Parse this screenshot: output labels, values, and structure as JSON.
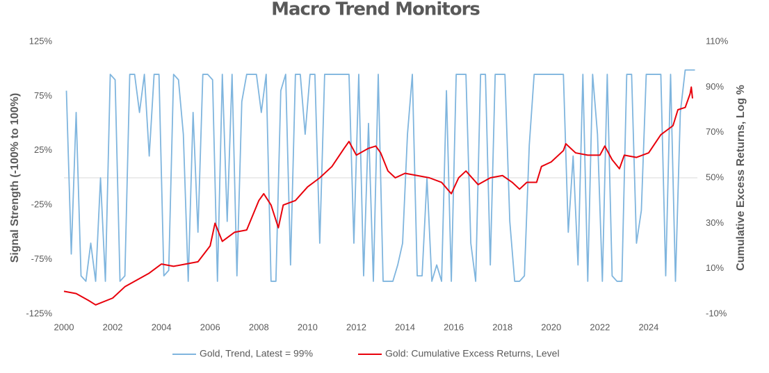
{
  "chart_data": {
    "type": "line",
    "title": "Macro Trend Monitors",
    "y_label": "Signal Strength (-100% to 100%)",
    "y2_label": "Cumulative Excess Returns, Log %",
    "xlim": [
      2000,
      2026
    ],
    "xticks": [
      2000,
      2002,
      2004,
      2006,
      2008,
      2010,
      2012,
      2014,
      2016,
      2018,
      2020,
      2022,
      2024
    ],
    "ylim": [
      -125,
      125
    ],
    "yticks": [
      {
        "value": -125,
        "label": "-125%"
      },
      {
        "value": -75,
        "label": "-75%"
      },
      {
        "value": -25,
        "label": "-25%"
      },
      {
        "value": 25,
        "label": "25%"
      },
      {
        "value": 75,
        "label": "75%"
      },
      {
        "value": 125,
        "label": "125%"
      }
    ],
    "y2lim": [
      -10,
      110
    ],
    "y2ticks": [
      {
        "value": -10,
        "label": "-10%"
      },
      {
        "value": 10,
        "label": "10%"
      },
      {
        "value": 30,
        "label": "30%"
      },
      {
        "value": 50,
        "label": "50%"
      },
      {
        "value": 70,
        "label": "70%"
      },
      {
        "value": 90,
        "label": "90%"
      },
      {
        "value": 110,
        "label": "110%"
      }
    ],
    "grid": false,
    "legend": "bottom",
    "series": [
      {
        "name": "Gold, Trend, Latest = 99%",
        "color": "#7fb5de",
        "axis": "y",
        "x": [
          2000.1,
          2000.3,
          2000.5,
          2000.7,
          2000.9,
          2001.1,
          2001.3,
          2001.5,
          2001.7,
          2001.9,
          2002.1,
          2002.3,
          2002.5,
          2002.7,
          2002.9,
          2003.1,
          2003.3,
          2003.5,
          2003.7,
          2003.9,
          2004.1,
          2004.3,
          2004.5,
          2004.7,
          2004.9,
          2005.1,
          2005.3,
          2005.5,
          2005.7,
          2005.9,
          2006.1,
          2006.3,
          2006.5,
          2006.7,
          2006.9,
          2007.1,
          2007.3,
          2007.5,
          2007.7,
          2007.9,
          2008.1,
          2008.3,
          2008.5,
          2008.7,
          2008.9,
          2009.1,
          2009.3,
          2009.5,
          2009.7,
          2009.9,
          2010.1,
          2010.3,
          2010.5,
          2010.7,
          2010.9,
          2011.1,
          2011.3,
          2011.5,
          2011.7,
          2011.9,
          2012.1,
          2012.3,
          2012.5,
          2012.7,
          2012.9,
          2013.1,
          2013.3,
          2013.5,
          2013.7,
          2013.9,
          2014.1,
          2014.3,
          2014.5,
          2014.7,
          2014.9,
          2015.1,
          2015.3,
          2015.5,
          2015.7,
          2015.9,
          2016.1,
          2016.3,
          2016.5,
          2016.7,
          2016.9,
          2017.1,
          2017.3,
          2017.5,
          2017.7,
          2017.9,
          2018.1,
          2018.3,
          2018.5,
          2018.7,
          2018.9,
          2019.1,
          2019.3,
          2019.5,
          2019.7,
          2019.9,
          2020.1,
          2020.3,
          2020.5,
          2020.7,
          2020.9,
          2021.1,
          2021.3,
          2021.5,
          2021.7,
          2021.9,
          2022.1,
          2022.3,
          2022.5,
          2022.7,
          2022.9,
          2023.1,
          2023.3,
          2023.5,
          2023.7,
          2023.9,
          2024.1,
          2024.3,
          2024.5,
          2024.7,
          2024.9,
          2025.1,
          2025.3,
          2025.5,
          2025.7,
          2025.9
        ],
        "values": [
          80,
          -70,
          60,
          -90,
          -95,
          -60,
          -95,
          0,
          -95,
          95,
          90,
          -95,
          -90,
          95,
          95,
          60,
          95,
          20,
          95,
          95,
          -90,
          -85,
          95,
          90,
          40,
          -95,
          60,
          -50,
          95,
          95,
          90,
          -95,
          95,
          -40,
          95,
          -90,
          70,
          95,
          95,
          95,
          60,
          95,
          -95,
          -95,
          80,
          95,
          -80,
          95,
          95,
          40,
          95,
          95,
          -60,
          95,
          95,
          95,
          95,
          95,
          95,
          -60,
          95,
          -90,
          50,
          -95,
          95,
          -95,
          -95,
          -95,
          -80,
          -60,
          40,
          95,
          -90,
          -90,
          0,
          -95,
          -80,
          -95,
          80,
          -95,
          95,
          95,
          95,
          -60,
          -95,
          95,
          95,
          -80,
          95,
          95,
          95,
          -40,
          -95,
          -95,
          -90,
          30,
          95,
          95,
          95,
          95,
          95,
          95,
          95,
          -50,
          20,
          -80,
          95,
          -95,
          95,
          40,
          -95,
          95,
          -90,
          -95,
          -95,
          95,
          95,
          -60,
          -30,
          95,
          95,
          95,
          95,
          -90,
          95,
          -95,
          60,
          99,
          99,
          99
        ]
      },
      {
        "name": "Gold: Cumulative Excess Returns, Level",
        "color": "#e8000b",
        "axis": "y2",
        "x": [
          2000,
          2000.5,
          2001,
          2001.3,
          2002,
          2002.5,
          2003,
          2003.5,
          2004,
          2004.5,
          2005,
          2005.5,
          2006,
          2006.2,
          2006.5,
          2007,
          2007.5,
          2008,
          2008.2,
          2008.5,
          2008.8,
          2009,
          2009.5,
          2010,
          2010.5,
          2011,
          2011.5,
          2011.7,
          2012,
          2012.5,
          2012.8,
          2013,
          2013.3,
          2013.6,
          2014,
          2014.5,
          2015,
          2015.5,
          2015.9,
          2016.2,
          2016.5,
          2017,
          2017.5,
          2018,
          2018.4,
          2018.7,
          2019,
          2019.4,
          2019.6,
          2020,
          2020.5,
          2020.6,
          2021,
          2021.5,
          2022,
          2022.2,
          2022.5,
          2022.8,
          2023,
          2023.5,
          2024,
          2024.5,
          2025,
          2025.2,
          2025.5,
          2025.7,
          2025.75,
          2025.8
        ],
        "values": [
          0,
          -1,
          -4,
          -6,
          -3,
          2,
          5,
          8,
          12,
          11,
          12,
          13,
          20,
          30,
          22,
          26,
          27,
          40,
          43,
          38,
          28,
          38,
          40,
          46,
          50,
          55,
          63,
          66,
          60,
          63,
          64,
          61,
          53,
          50,
          52,
          51,
          50,
          48,
          43,
          50,
          53,
          47,
          50,
          51,
          48,
          45,
          48,
          48,
          55,
          57,
          62,
          65,
          61,
          60,
          60,
          64,
          58,
          54,
          60,
          59,
          61,
          69,
          73,
          80,
          81,
          87,
          90,
          85
        ]
      }
    ]
  }
}
